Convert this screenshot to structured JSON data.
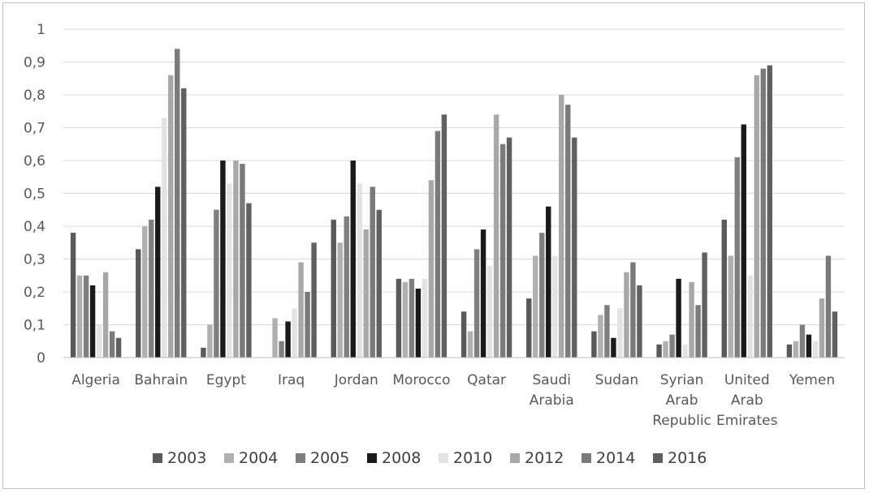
{
  "chart_data": {
    "type": "bar",
    "title": "",
    "xlabel": "",
    "ylabel": "",
    "ylim": [
      0,
      1
    ],
    "y_ticks": [
      "0",
      "0,1",
      "0,2",
      "0,3",
      "0,4",
      "0,5",
      "0,6",
      "0,7",
      "0,8",
      "0,9",
      "1"
    ],
    "gridlines": true,
    "legend_position": "bottom",
    "categories": [
      [
        "Algeria"
      ],
      [
        "Bahrain"
      ],
      [
        "Egypt"
      ],
      [
        "Iraq"
      ],
      [
        "Jordan"
      ],
      [
        "Morocco"
      ],
      [
        "Qatar"
      ],
      [
        "Saudi",
        "Arabia"
      ],
      [
        "Sudan"
      ],
      [
        "Syrian",
        "Arab",
        "Republic"
      ],
      [
        "United",
        "Arab",
        "Emirates"
      ],
      [
        "Yemen"
      ]
    ],
    "series": [
      {
        "name": "2003",
        "color": "#595959",
        "values": [
          0.38,
          0.33,
          0.03,
          0.0,
          0.42,
          0.24,
          0.14,
          0.18,
          0.08,
          0.04,
          0.42,
          0.04
        ]
      },
      {
        "name": "2004",
        "color": "#b0b0b0",
        "values": [
          0.25,
          0.4,
          0.1,
          0.12,
          0.35,
          0.23,
          0.08,
          0.31,
          0.13,
          0.05,
          0.31,
          0.05
        ]
      },
      {
        "name": "2005",
        "color": "#7f7f7f",
        "values": [
          0.25,
          0.42,
          0.45,
          0.05,
          0.43,
          0.24,
          0.33,
          0.38,
          0.16,
          0.07,
          0.61,
          0.1
        ]
      },
      {
        "name": "2008",
        "color": "#1a1a1a",
        "values": [
          0.22,
          0.52,
          0.6,
          0.11,
          0.6,
          0.21,
          0.39,
          0.46,
          0.06,
          0.24,
          0.71,
          0.07
        ]
      },
      {
        "name": "2010",
        "color": "#e3e3e3",
        "values": [
          0.1,
          0.73,
          0.53,
          0.15,
          0.53,
          0.24,
          0.28,
          0.31,
          0.15,
          0.04,
          0.25,
          0.05
        ]
      },
      {
        "name": "2012",
        "color": "#a8a8a8",
        "values": [
          0.26,
          0.86,
          0.6,
          0.29,
          0.39,
          0.54,
          0.74,
          0.8,
          0.26,
          0.23,
          0.86,
          0.18
        ]
      },
      {
        "name": "2014",
        "color": "#7a7a7a",
        "values": [
          0.08,
          0.94,
          0.59,
          0.2,
          0.52,
          0.69,
          0.65,
          0.77,
          0.29,
          0.16,
          0.88,
          0.31
        ]
      },
      {
        "name": "2016",
        "color": "#606060",
        "values": [
          0.06,
          0.82,
          0.47,
          0.35,
          0.45,
          0.74,
          0.67,
          0.67,
          0.22,
          0.32,
          0.89,
          0.14
        ]
      }
    ]
  }
}
